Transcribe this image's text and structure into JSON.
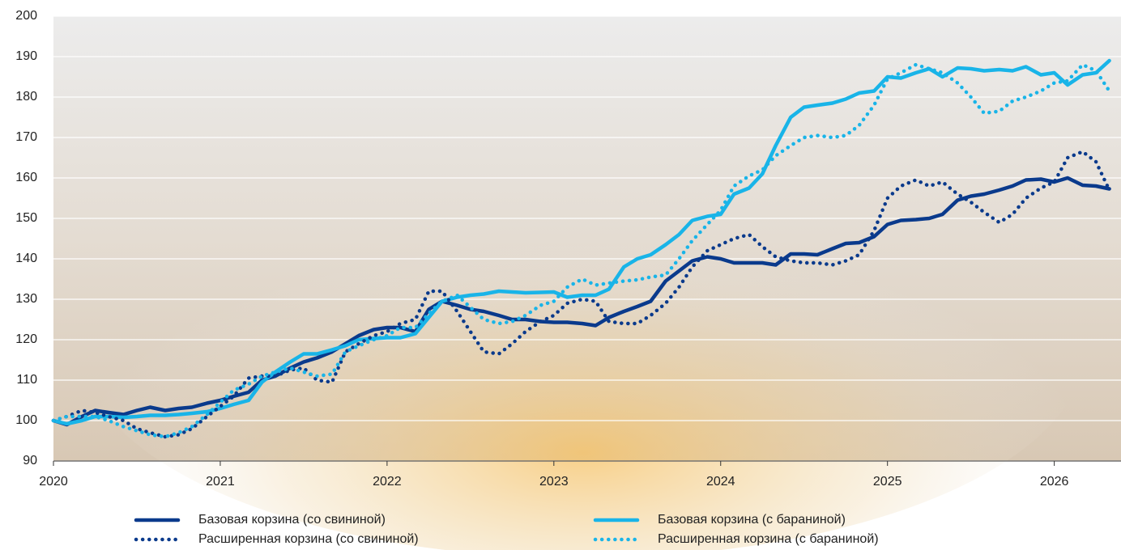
{
  "chart_data": {
    "type": "line",
    "x": [
      2020,
      2020.08,
      2020.17,
      2020.25,
      2020.33,
      2020.42,
      2020.5,
      2020.58,
      2020.67,
      2020.75,
      2020.83,
      2020.92,
      2021,
      2021.08,
      2021.17,
      2021.25,
      2021.33,
      2021.42,
      2021.5,
      2021.58,
      2021.67,
      2021.75,
      2021.83,
      2021.92,
      2022,
      2022.08,
      2022.17,
      2022.25,
      2022.33,
      2022.42,
      2022.5,
      2022.58,
      2022.67,
      2022.75,
      2022.83,
      2022.92,
      2023,
      2023.08,
      2023.17,
      2023.25,
      2023.33,
      2023.42,
      2023.5,
      2023.58,
      2023.67,
      2023.75,
      2023.83,
      2023.92,
      2024,
      2024.08,
      2024.17,
      2024.25,
      2024.33,
      2024.42,
      2024.5,
      2024.58,
      2024.67,
      2024.75,
      2024.83,
      2024.92,
      2025,
      2025.08,
      2025.17,
      2025.25,
      2025.33,
      2025.42,
      2025.5,
      2025.58,
      2025.67,
      2025.75,
      2025.83,
      2025.92,
      2026,
      2026.08,
      2026.17,
      2026.25,
      2026.33
    ],
    "series": [
      {
        "name": "Базовая корзина (со свининой)",
        "color": "#0a3a8c",
        "style": "solid",
        "values": [
          100,
          99,
          101,
          102.5,
          102,
          101.5,
          102.5,
          103.3,
          102.5,
          103,
          103.3,
          104.3,
          105,
          106,
          107,
          110,
          111,
          113,
          114.5,
          115.5,
          117,
          119,
          121,
          122.5,
          123,
          123,
          122,
          127.5,
          129.5,
          128.5,
          127.5,
          127,
          126,
          125,
          125,
          124.5,
          124.3,
          124.3,
          124,
          123.5,
          125.5,
          127,
          128.2,
          129.5,
          134.5,
          137,
          139.5,
          140.5,
          140,
          139,
          139,
          139,
          138.5,
          141.2,
          141.2,
          141,
          142.5,
          143.8,
          144,
          145.5,
          148.5,
          149.5,
          149.7,
          150,
          151,
          154.5,
          155.5,
          156,
          157,
          158,
          159.5,
          159.7,
          159,
          160,
          158.2,
          158,
          157.3
        ]
      },
      {
        "name": "Базовая корзина (с бараниной)",
        "color": "#19b4e8",
        "style": "solid",
        "values": [
          100,
          99.2,
          100,
          101,
          101,
          100.8,
          101,
          101.3,
          101.3,
          101.5,
          101.8,
          102.2,
          103,
          104,
          105,
          109.5,
          112,
          114.5,
          116.5,
          116.5,
          117.5,
          118.5,
          120,
          120.3,
          120.5,
          120.5,
          121.5,
          125.5,
          129.5,
          130.5,
          131,
          131.3,
          132,
          131.8,
          131.6,
          131.7,
          131.8,
          130.5,
          131,
          131,
          132.5,
          138,
          140,
          141,
          143.5,
          146,
          149.5,
          150.5,
          151,
          156,
          157.5,
          161,
          168,
          175,
          177.5,
          178,
          178.5,
          179.5,
          181,
          181.5,
          185,
          184.7,
          186,
          187,
          185,
          187.2,
          187,
          186.5,
          186.8,
          186.5,
          187.5,
          185.5,
          186,
          183,
          185.5,
          186,
          189
        ]
      },
      {
        "name": "Расширенная корзина (со свининой)",
        "color": "#0a3a8c",
        "style": "dotted",
        "values": [
          100,
          101,
          102.5,
          102,
          101,
          100,
          98,
          97,
          96,
          96.5,
          98,
          101,
          103.5,
          106,
          110.5,
          111,
          111,
          112.5,
          113,
          110,
          109.5,
          117,
          119,
          121,
          122,
          124,
          125,
          132,
          132,
          127,
          122,
          117,
          116.5,
          119,
          122,
          124.5,
          126,
          129,
          130,
          129.5,
          124.5,
          124,
          124,
          126,
          129,
          133,
          138,
          142,
          143.5,
          145,
          146,
          143,
          140.5,
          139.5,
          139,
          139,
          138.5,
          139.5,
          141,
          147,
          155,
          158,
          159.5,
          158,
          159,
          156,
          154,
          151.5,
          149,
          151,
          155,
          157.5,
          159,
          165,
          166.5,
          164,
          157
        ]
      },
      {
        "name": "Расширенная корзина (с бараниной)",
        "color": "#19b4e8",
        "style": "dotted",
        "values": [
          100,
          101,
          101,
          101,
          100,
          98.5,
          97.5,
          96.5,
          96,
          97,
          98.5,
          101.5,
          104.5,
          107.5,
          109,
          111,
          112,
          113,
          112,
          111,
          111.5,
          117,
          118.5,
          120,
          121,
          123,
          123,
          126.5,
          129.5,
          131,
          128,
          125,
          124,
          124.5,
          126,
          128.5,
          129.5,
          133,
          135,
          133.5,
          134,
          134.5,
          134.8,
          135.5,
          136,
          140,
          144.5,
          148.5,
          152,
          158,
          160.5,
          162,
          165.5,
          168,
          170,
          170.5,
          170,
          170.5,
          173,
          178,
          184.5,
          186,
          188,
          187,
          186,
          183.5,
          180,
          176,
          176.5,
          179,
          180,
          181.5,
          183.5,
          184,
          188,
          186.5,
          181.5
        ]
      }
    ],
    "xlim": [
      2020,
      2026.4
    ],
    "xticks": [
      2020,
      2021,
      2022,
      2023,
      2024,
      2025,
      2026
    ],
    "ylim": [
      90,
      200
    ],
    "yticks": [
      90,
      100,
      110,
      120,
      130,
      140,
      150,
      160,
      170,
      180,
      190,
      200
    ],
    "grid": true
  }
}
